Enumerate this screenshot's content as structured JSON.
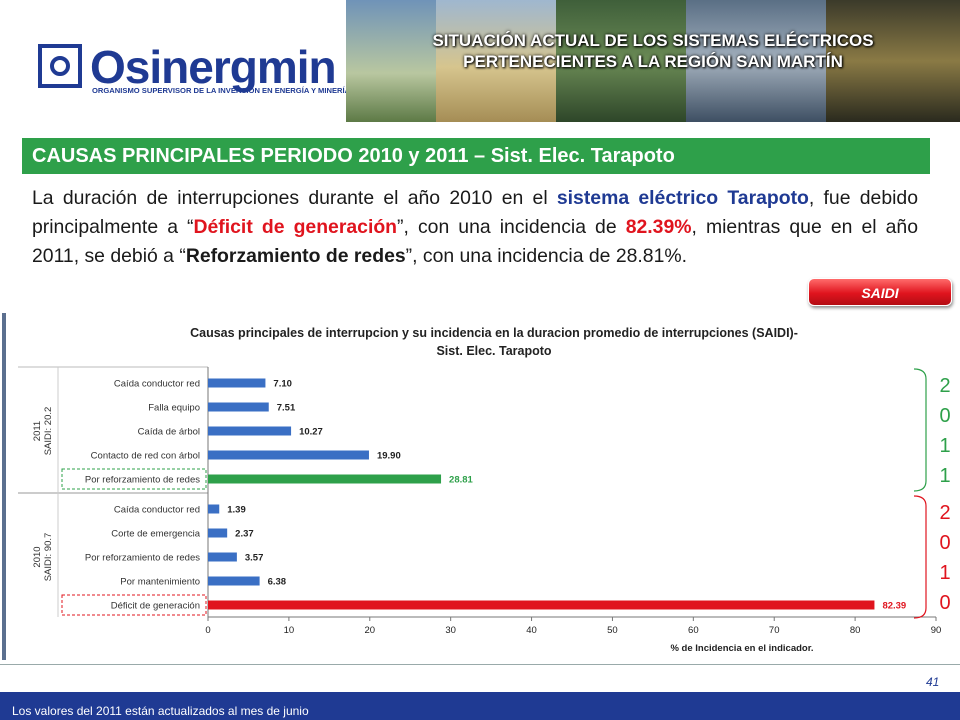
{
  "header": {
    "logo_name": "Osinergmin",
    "logo_sub": "ORGANISMO SUPERVISOR DE LA INVERSIÓN EN ENERGÍA Y MINERÍA",
    "title_line1": "SITUACIÓN ACTUAL DE LOS SISTEMAS ELÉCTRICOS",
    "title_line2": "PERTENECIENTES A LA REGIÓN SAN MARTÍN"
  },
  "section_title": "CAUSAS PRINCIPALES PERIODO 2010 y 2011 – Sist. Elec. Tarapoto",
  "paragraph": {
    "p1": "La duración de interrupciones durante el año 2010 en el ",
    "p2": "sistema eléctrico Tarapoto",
    "p3": ", fue debido principalmente a “",
    "p4": "Déficit de generación",
    "p5": "”, con una incidencia de ",
    "p6": "82.39%",
    "p7": ", mientras que en el año 2011, se debió a “",
    "p8": "Reforzamiento de redes",
    "p9": "”, con una incidencia de 28.81%."
  },
  "saidi_button": "SAIDI",
  "year_2011_digits": [
    "2",
    "0",
    "1",
    "1"
  ],
  "year_2010_digits": [
    "2",
    "0",
    "1",
    "0"
  ],
  "page_number": "41",
  "footer_note": "Los valores del 2011 están actualizados al mes de junio",
  "colors": {
    "brand_blue": "#1f3a93",
    "section_green": "#2ea04a",
    "bar_blue": "#3a6fc4",
    "bar_green": "#2ea04a",
    "bar_red": "#e0141e"
  },
  "chart_data": {
    "type": "bar",
    "orientation": "horizontal",
    "title": "Causas principales de interrupcion y su incidencia en  la duracion promedio de interrupciones (SAIDI)-",
    "subtitle": "Sist. Elec.  Tarapoto",
    "xlabel": "% de Incidencia en el indicador.",
    "xlim": [
      0,
      90
    ],
    "xticks": [
      0,
      10,
      20,
      30,
      40,
      50,
      60,
      70,
      80,
      90
    ],
    "grid": false,
    "groups": [
      {
        "label_line1": "2011",
        "label_line2": "SAIDI: 20.2",
        "categories": [
          "Caída conductor red",
          "Falla equipo",
          "Caída de árbol",
          "Contacto de red con árbol",
          "Por reforzamiento de redes"
        ],
        "values": [
          7.1,
          7.51,
          10.27,
          19.9,
          28.81
        ],
        "value_labels": [
          "7.10",
          "7.51",
          "10.27",
          "19.90",
          "28.81"
        ],
        "highlight_index": 4,
        "highlight_color": "#2ea04a"
      },
      {
        "label_line1": "2010",
        "label_line2": "SAIDI: 90.7",
        "categories": [
          "Caída conductor red",
          "Corte de emergencia",
          "Por reforzamiento de redes",
          "Por mantenimiento",
          "Déficit de generación"
        ],
        "values": [
          1.39,
          2.37,
          3.57,
          6.38,
          82.39
        ],
        "value_labels": [
          "1.39",
          "2.37",
          "3.57",
          "6.38",
          "82.39"
        ],
        "highlight_index": 4,
        "highlight_color": "#e0141e"
      }
    ]
  }
}
